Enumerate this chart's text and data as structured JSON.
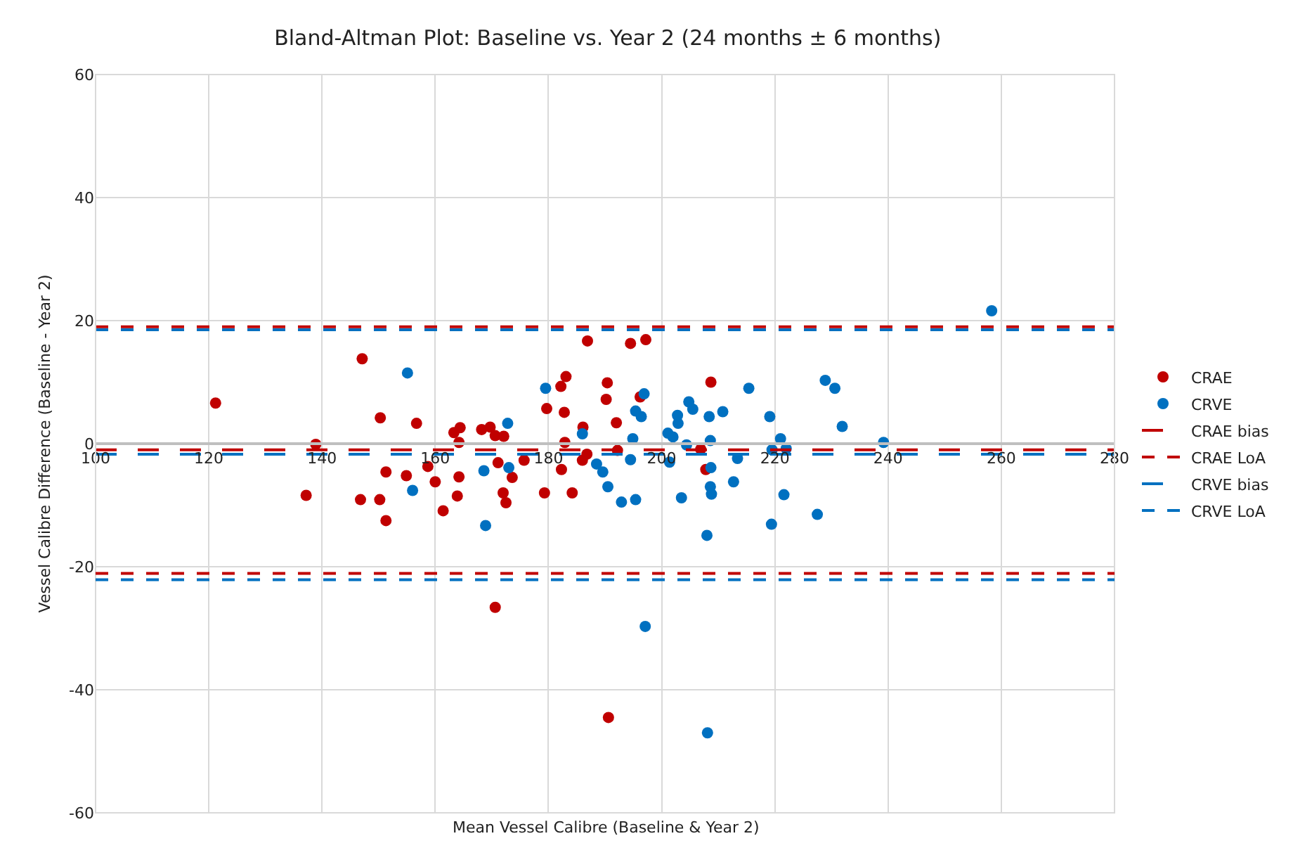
{
  "chart_data": {
    "type": "scatter",
    "title": "Bland-Altman Plot: Baseline vs. Year 2 (24 months ± 6 months)",
    "xlabel": "Mean Vessel Calibre (Baseline & Year 2)",
    "ylabel": "Vessel Calibre Difference (Baseline - Year 2)",
    "xlim": [
      100,
      280
    ],
    "xticks": [
      100,
      120,
      140,
      160,
      180,
      200,
      220,
      240,
      260,
      280
    ],
    "ylim": [
      -60,
      60
    ],
    "yticks": [
      -60,
      -40,
      -20,
      0,
      20,
      40,
      60
    ],
    "grid": true,
    "legend": "right",
    "marker": "circle",
    "series": [
      {
        "name": "CRAE",
        "color": "#c00000",
        "x": [
          121.2,
          137.2,
          138.9,
          147.1,
          150.3,
          146.8,
          150.2,
          151.3,
          151.3,
          156.7,
          154.9,
          158.7,
          160.0,
          161.4,
          163.3,
          164.4,
          164.2,
          164.2,
          163.9,
          168.2,
          169.7,
          170.6,
          172.1,
          171.1,
          172.0,
          172.5,
          173.6,
          175.7,
          170.6,
          179.3,
          179.7,
          182.2,
          182.8,
          183.1,
          182.9,
          182.3,
          186.9,
          194.5,
          197.2,
          190.4,
          190.2,
          196.2,
          192.0,
          186.1,
          186.8,
          186.0,
          184.2,
          192.2,
          208.7,
          206.9,
          207.8,
          190.6
        ],
        "values": [
          6.6,
          -8.4,
          -0.1,
          13.8,
          4.2,
          -9.1,
          -9.1,
          -4.6,
          -12.5,
          3.3,
          -5.2,
          -3.7,
          -6.2,
          -10.9,
          1.8,
          2.6,
          0.2,
          -5.4,
          -8.5,
          2.3,
          2.7,
          1.3,
          1.2,
          -3.1,
          -8.0,
          -9.6,
          -5.5,
          -2.7,
          -26.6,
          -8.0,
          5.7,
          9.3,
          5.1,
          10.9,
          0.2,
          -4.2,
          16.7,
          16.3,
          16.9,
          9.9,
          7.2,
          7.6,
          3.4,
          2.7,
          -1.7,
          -2.7,
          -8.0,
          -1.1,
          10.0,
          -0.9,
          -4.2,
          -44.5
        ]
      },
      {
        "name": "CRVE",
        "color": "#0070c0",
        "x": [
          155.1,
          156.0,
          168.6,
          168.9,
          172.8,
          173.0,
          179.5,
          186.0,
          196.9,
          195.4,
          196.4,
          194.9,
          188.5,
          189.6,
          190.5,
          192.9,
          195.4,
          194.5,
          201.1,
          202.0,
          202.8,
          202.9,
          204.8,
          205.5,
          204.4,
          203.5,
          208.4,
          208.6,
          208.7,
          208.6,
          208.8,
          208.0,
          210.8,
          213.4,
          212.7,
          215.4,
          201.4,
          219.1,
          221.0,
          222.0,
          219.5,
          221.6,
          219.4,
          227.5,
          228.9,
          230.6,
          231.9,
          239.2,
          258.3,
          208.1,
          197.1
        ],
        "values": [
          11.5,
          -7.6,
          -4.4,
          -13.3,
          3.3,
          -3.9,
          9.0,
          1.6,
          8.1,
          5.3,
          4.4,
          0.8,
          -3.3,
          -4.6,
          -7.0,
          -9.5,
          -9.1,
          -2.6,
          1.7,
          1.1,
          4.6,
          3.3,
          6.8,
          5.6,
          -0.2,
          -8.8,
          4.4,
          0.5,
          -3.9,
          -7.0,
          -8.2,
          -14.9,
          5.2,
          -2.4,
          -6.2,
          9.0,
          -3.0,
          4.4,
          0.8,
          -0.8,
          -1.0,
          -8.3,
          -13.1,
          -11.5,
          10.3,
          9.0,
          2.8,
          0.2,
          21.6,
          -47.0,
          -29.7
        ]
      },
      {
        "name": "CRAE bias",
        "type": "line",
        "color": "#c00000",
        "line_style": "dashed",
        "marker": "none",
        "x": [
          100,
          280
        ],
        "values": [
          -1.0,
          -1.0
        ]
      },
      {
        "name": "CRAE LoA",
        "type": "line",
        "color": "#c00000",
        "line_style": "dotted",
        "marker": "none",
        "x": [
          100,
          280
        ],
        "values": [
          19.0,
          19.0
        ]
      },
      {
        "name": "CRVE bias",
        "type": "line",
        "color": "#0070c0",
        "line_style": "dashed",
        "marker": "none",
        "x": [
          100,
          280
        ],
        "values": [
          -1.7,
          -1.7
        ]
      },
      {
        "name": "CRVE LoA",
        "type": "line",
        "color": "#0070c0",
        "line_style": "dotted",
        "marker": "none",
        "x": [
          100,
          280
        ],
        "values": [
          18.5,
          18.5
        ]
      }
    ],
    "ref_lines": [
      {
        "axis": "y",
        "value": -21.1,
        "color": "#c00000",
        "line_style": "dotted"
      },
      {
        "axis": "y",
        "value": -22.1,
        "color": "#0070c0",
        "line_style": "dotted"
      }
    ]
  }
}
